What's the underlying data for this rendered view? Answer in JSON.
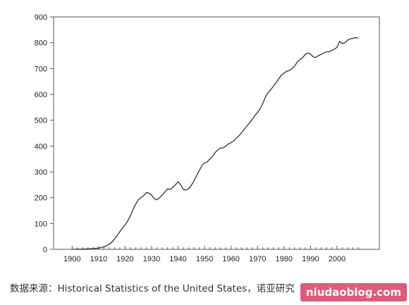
{
  "chart_data": {
    "type": "line",
    "title": "",
    "xlabel": "",
    "ylabel": "",
    "xlim": [
      1893,
      2016
    ],
    "ylim": [
      0,
      900
    ],
    "x_ticks": [
      1900,
      1910,
      1920,
      1930,
      1940,
      1950,
      1960,
      1970,
      1980,
      1990,
      2000
    ],
    "y_ticks": [
      0,
      100,
      200,
      300,
      400,
      500,
      600,
      700,
      800,
      900
    ],
    "grid": false,
    "legend": "none",
    "line_color": "#333333",
    "series": [
      {
        "name": "",
        "x": [
          1900,
          1902,
          1904,
          1906,
          1908,
          1910,
          1911,
          1912,
          1913,
          1914,
          1915,
          1916,
          1917,
          1918,
          1919,
          1920,
          1921,
          1922,
          1923,
          1924,
          1925,
          1926,
          1927,
          1928,
          1929,
          1930,
          1931,
          1932,
          1933,
          1934,
          1935,
          1936,
          1937,
          1938,
          1939,
          1940,
          1941,
          1942,
          1943,
          1944,
          1945,
          1946,
          1947,
          1948,
          1949,
          1950,
          1951,
          1952,
          1953,
          1954,
          1955,
          1956,
          1957,
          1958,
          1959,
          1960,
          1961,
          1962,
          1963,
          1964,
          1965,
          1966,
          1967,
          1968,
          1969,
          1970,
          1971,
          1972,
          1973,
          1974,
          1975,
          1976,
          1977,
          1978,
          1979,
          1980,
          1981,
          1982,
          1983,
          1984,
          1985,
          1986,
          1987,
          1988,
          1989,
          1990,
          1991,
          1992,
          1993,
          1994,
          1995,
          1996,
          1997,
          1998,
          1999,
          2000,
          2001,
          2002,
          2003,
          2004,
          2005,
          2006,
          2007,
          2008
        ],
        "values": [
          0,
          1,
          1,
          2,
          3,
          5,
          7,
          10,
          14,
          20,
          28,
          40,
          55,
          68,
          82,
          95,
          110,
          130,
          155,
          175,
          192,
          200,
          208,
          220,
          218,
          210,
          196,
          192,
          200,
          210,
          222,
          234,
          232,
          240,
          250,
          262,
          250,
          232,
          230,
          235,
          248,
          265,
          285,
          305,
          325,
          335,
          338,
          350,
          360,
          375,
          385,
          392,
          393,
          400,
          408,
          413,
          420,
          430,
          440,
          452,
          465,
          478,
          490,
          503,
          518,
          530,
          545,
          565,
          590,
          607,
          618,
          632,
          645,
          660,
          675,
          682,
          690,
          692,
          700,
          710,
          725,
          735,
          742,
          755,
          760,
          757,
          745,
          743,
          750,
          755,
          760,
          765,
          765,
          770,
          775,
          782,
          805,
          797,
          800,
          810,
          815,
          817,
          820,
          818
        ]
      }
    ]
  },
  "caption": "数据来源：Historical Statistics of the United States，诺亚研究",
  "watermark": "niudaoblog.com"
}
